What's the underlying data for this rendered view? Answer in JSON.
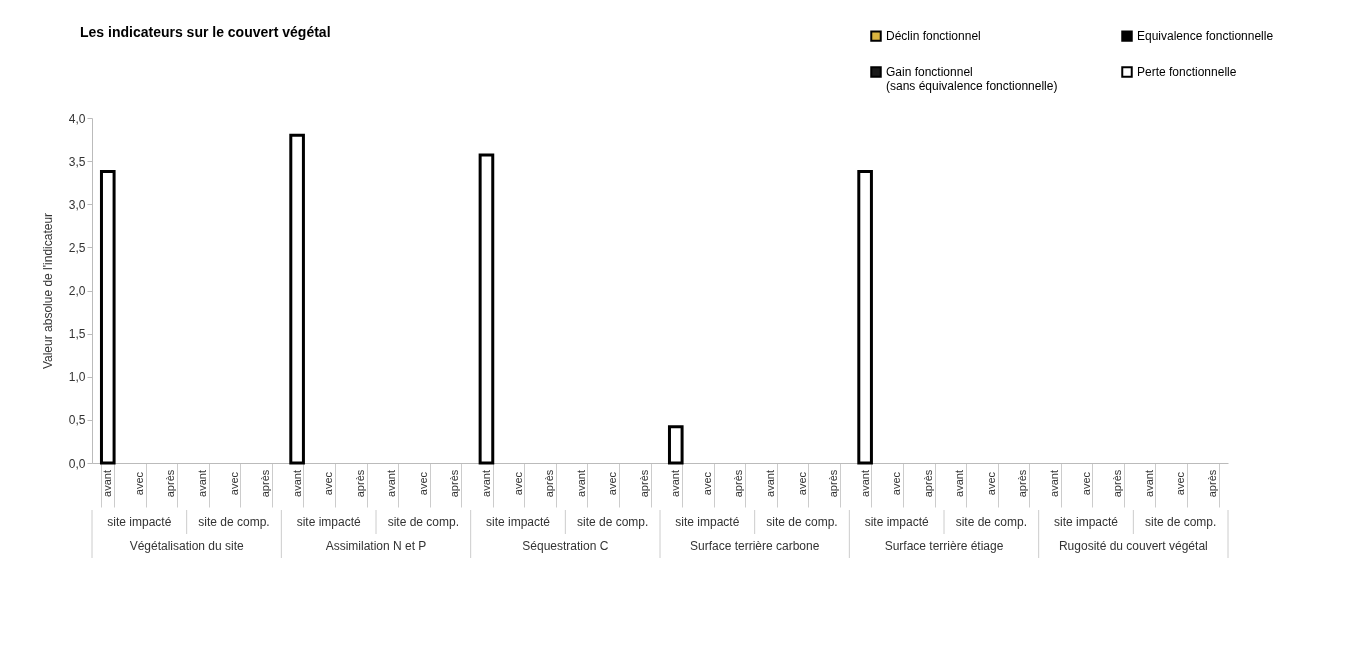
{
  "chart_data": {
    "type": "bar",
    "title": "Les indicateurs sur le couvert végétal",
    "ylabel": "Valeur absolue de l'indicateur",
    "categories": [
      "avant",
      "avec",
      "après",
      "avant",
      "avec",
      "après",
      "avant",
      "avec",
      "après",
      "avant",
      "avec",
      "après",
      "avant",
      "avec",
      "après",
      "avant",
      "avec",
      "après",
      "avant",
      "avec",
      "après",
      "avant",
      "avec",
      "après",
      "avant",
      "avec",
      "après",
      "avant",
      "avec",
      "après",
      "avant",
      "avec",
      "après",
      "avant",
      "avec",
      "après"
    ],
    "series": [
      {
        "name": "Déclin fonctionnel",
        "color": "#d9b440",
        "values": [
          null,
          null,
          null,
          null,
          null,
          null,
          null,
          null,
          null,
          null,
          null,
          null,
          null,
          null,
          null,
          null,
          null,
          null,
          null,
          null,
          null,
          null,
          null,
          null,
          null,
          null,
          null,
          null,
          null,
          null,
          null,
          null,
          null,
          null,
          null,
          null
        ]
      },
      {
        "name": "Equivalence fonctionnelle",
        "color": "#000000",
        "values": [
          null,
          null,
          null,
          null,
          null,
          null,
          null,
          null,
          null,
          null,
          null,
          null,
          null,
          null,
          null,
          null,
          null,
          null,
          null,
          null,
          null,
          null,
          null,
          null,
          null,
          null,
          null,
          null,
          null,
          null,
          null,
          null,
          null,
          null,
          null,
          null
        ]
      },
      {
        "name": "Gain fonctionnel\n(sans équivalence fonctionnelle)",
        "color": "#1a1a1a",
        "values": [
          null,
          null,
          null,
          null,
          null,
          null,
          null,
          null,
          null,
          null,
          null,
          null,
          null,
          null,
          null,
          null,
          null,
          null,
          null,
          null,
          null,
          null,
          null,
          null,
          null,
          null,
          null,
          null,
          null,
          null,
          null,
          null,
          null,
          null,
          null,
          null
        ]
      },
      {
        "name": "Perte fonctionnelle",
        "color": "#ffffff",
        "values": [
          3.38,
          null,
          null,
          null,
          null,
          null,
          3.8,
          null,
          null,
          null,
          null,
          null,
          3.57,
          null,
          null,
          null,
          null,
          null,
          0.42,
          null,
          null,
          null,
          null,
          null,
          3.38,
          null,
          null,
          null,
          null,
          null,
          null,
          null,
          null,
          null,
          null,
          null
        ]
      }
    ],
    "ylim": [
      0,
      4
    ],
    "yticks": [
      {
        "value": 0,
        "label": "0,0"
      },
      {
        "value": 0.5,
        "label": "0,5"
      },
      {
        "value": 1,
        "label": "1,0"
      },
      {
        "value": 1.5,
        "label": "1,5"
      },
      {
        "value": 2,
        "label": "2,0"
      },
      {
        "value": 2.5,
        "label": "2,5"
      },
      {
        "value": 3,
        "label": "3,0"
      },
      {
        "value": 3.5,
        "label": "3,5"
      },
      {
        "value": 4,
        "label": "4,0"
      }
    ],
    "annotations": [
      "site impacté",
      "site de comp.",
      "site impacté",
      "site de comp.",
      "site impacté",
      "site de comp.",
      "site impacté",
      "site de comp.",
      "site impacté",
      "site de comp.",
      "site impacté",
      "site de comp.",
      "Végétalisation du site",
      "Assimilation N et P",
      "Séquestration C",
      "Surface terrière carbone",
      "Surface terrière étiage",
      "Rugosité du couvert végétal"
    ],
    "grid": false,
    "legend": "top right"
  }
}
